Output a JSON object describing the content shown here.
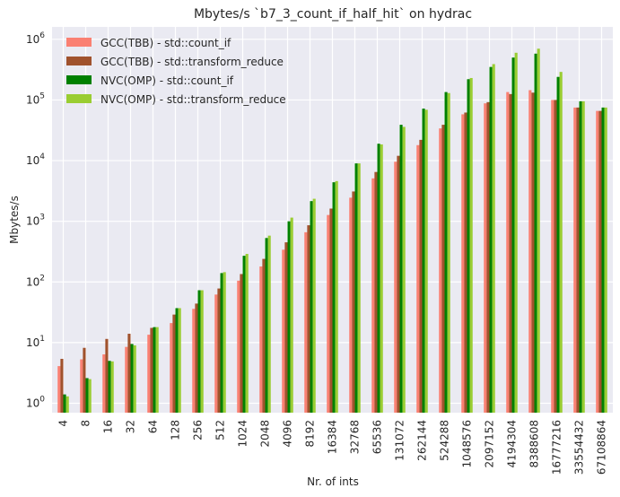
{
  "chart_data": {
    "type": "bar",
    "title": "Mbytes/s `b7_3_count_if_half_hit` on hydrac",
    "xlabel": "Nr. of ints",
    "ylabel": "Mbytes/s",
    "yscale": "log",
    "ylim": [
      0.7,
      1600000
    ],
    "yticks": [
      {
        "base": "10",
        "exp": "0",
        "value": 1
      },
      {
        "base": "10",
        "exp": "1",
        "value": 10
      },
      {
        "base": "10",
        "exp": "2",
        "value": 100
      },
      {
        "base": "10",
        "exp": "3",
        "value": 1000
      },
      {
        "base": "10",
        "exp": "4",
        "value": 10000
      },
      {
        "base": "10",
        "exp": "5",
        "value": 100000
      },
      {
        "base": "10",
        "exp": "6",
        "value": 1000000
      }
    ],
    "grid": true,
    "legend_position": "top-left",
    "categories": [
      "4",
      "8",
      "16",
      "32",
      "64",
      "128",
      "256",
      "512",
      "1024",
      "2048",
      "4096",
      "8192",
      "16384",
      "32768",
      "65536",
      "131072",
      "262144",
      "524288",
      "1048576",
      "2097152",
      "4194304",
      "8388608",
      "16777216",
      "33554432",
      "67108864"
    ],
    "series": [
      {
        "name": "GCC(TBB) - std::count_if",
        "color": "#fa8072",
        "values": [
          4.1,
          5.3,
          6.4,
          8.5,
          13.5,
          21,
          36,
          62,
          105,
          180,
          340,
          660,
          1270,
          2450,
          5100,
          9600,
          18000,
          34000,
          58000,
          88000,
          135000,
          145000,
          100000,
          75000,
          66000
        ]
      },
      {
        "name": "GCC(TBB) - std::transform_reduce",
        "color": "#a0522d",
        "values": [
          5.4,
          8.2,
          11.5,
          14,
          17.5,
          29,
          44,
          78,
          135,
          240,
          450,
          860,
          1620,
          3100,
          6500,
          12000,
          22000,
          39000,
          62000,
          92000,
          125000,
          132000,
          100000,
          75000,
          66000
        ]
      },
      {
        "name": "NVC(OMP) - std::count_if",
        "color": "#008000",
        "values": [
          1.4,
          2.6,
          5.0,
          9.5,
          18,
          37,
          73,
          140,
          270,
          530,
          1000,
          2150,
          4400,
          9000,
          19000,
          39000,
          72000,
          135000,
          220000,
          350000,
          500000,
          580000,
          240000,
          95000,
          75000
        ]
      },
      {
        "name": "NVC(OMP) - std::transform_reduce",
        "color": "#9acd32",
        "values": [
          1.3,
          2.5,
          4.9,
          9.0,
          18,
          37,
          73,
          145,
          290,
          580,
          1150,
          2350,
          4600,
          9000,
          18500,
          36000,
          69000,
          130000,
          230000,
          390000,
          600000,
          700000,
          290000,
          95000,
          75000
        ]
      }
    ]
  }
}
